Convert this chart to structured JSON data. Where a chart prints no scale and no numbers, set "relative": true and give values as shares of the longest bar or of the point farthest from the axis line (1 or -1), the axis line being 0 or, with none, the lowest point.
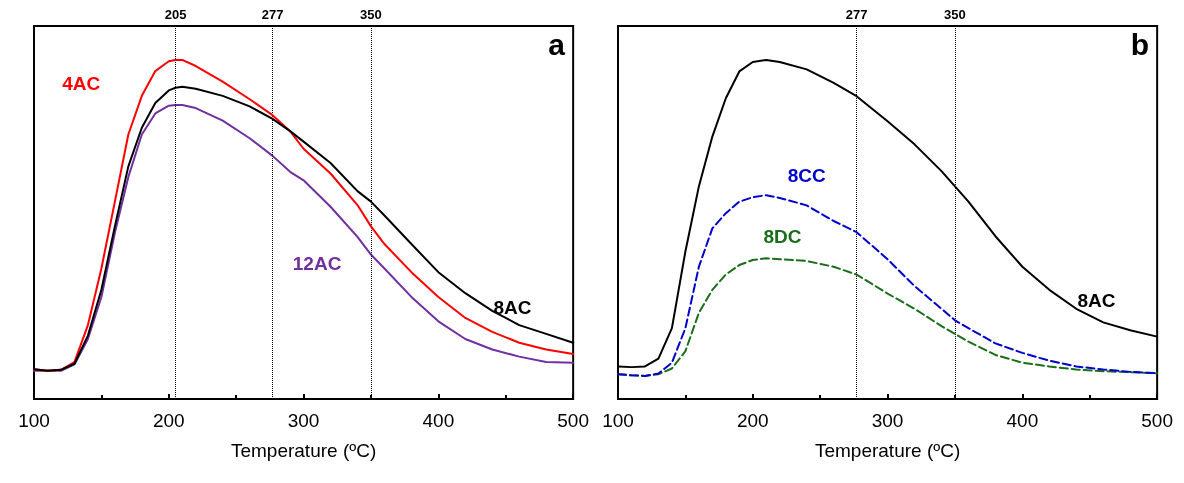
{
  "chart_data": [
    {
      "type": "line",
      "title": "a",
      "xlabel": "Temperature (ºC)",
      "relative": true,
      "xlim": [
        100,
        500
      ],
      "xticks": [
        100,
        200,
        300,
        400,
        500
      ],
      "grid": false,
      "legend": false,
      "marker": "none",
      "tick_labels": "x",
      "x": [
        100,
        110,
        120,
        130,
        140,
        150,
        160,
        170,
        180,
        190,
        200,
        205,
        210,
        220,
        240,
        260,
        277,
        290,
        300,
        320,
        340,
        350,
        360,
        380,
        400,
        420,
        440,
        460,
        480,
        500
      ],
      "ref_lines": [
        {
          "axis": "x",
          "value": 205,
          "label": "205",
          "line_style": "dotted",
          "color": "#000000"
        },
        {
          "axis": "x",
          "value": 277,
          "label": "277",
          "line_style": "dotted",
          "color": "#000000"
        },
        {
          "axis": "x",
          "value": 350,
          "label": "350",
          "line_style": "dotted",
          "color": "#000000"
        }
      ],
      "series": [
        {
          "name": "8AC",
          "color": "#000000",
          "line_style": "solid",
          "values": [
            0.088,
            0.083,
            0.086,
            0.104,
            0.187,
            0.322,
            0.509,
            0.686,
            0.8,
            0.873,
            0.91,
            0.918,
            0.921,
            0.915,
            0.894,
            0.863,
            0.826,
            0.79,
            0.759,
            0.696,
            0.613,
            0.582,
            0.541,
            0.457,
            0.374,
            0.312,
            0.26,
            0.218,
            0.192,
            0.166
          ]
        },
        {
          "name": "4AC",
          "color": "#ff0000",
          "line_style": "solid",
          "values": [
            0.088,
            0.083,
            0.086,
            0.109,
            0.218,
            0.385,
            0.582,
            0.78,
            0.894,
            0.967,
            0.996,
            1.0,
            1.0,
            0.982,
            0.936,
            0.884,
            0.837,
            0.79,
            0.738,
            0.665,
            0.572,
            0.509,
            0.457,
            0.374,
            0.301,
            0.239,
            0.198,
            0.166,
            0.146,
            0.133
          ]
        },
        {
          "name": "12AC",
          "color": "#7030a0",
          "line_style": "solid",
          "values": [
            0.083,
            0.083,
            0.083,
            0.102,
            0.177,
            0.301,
            0.49,
            0.655,
            0.78,
            0.842,
            0.865,
            0.867,
            0.867,
            0.858,
            0.821,
            0.769,
            0.717,
            0.67,
            0.645,
            0.567,
            0.478,
            0.426,
            0.385,
            0.301,
            0.229,
            0.177,
            0.146,
            0.125,
            0.109,
            0.107
          ]
        }
      ]
    },
    {
      "type": "line",
      "title": "b",
      "xlabel": "Temperature (ºC)",
      "relative": true,
      "xlim": [
        100,
        500
      ],
      "xticks": [
        100,
        200,
        300,
        400,
        500
      ],
      "grid": false,
      "legend": false,
      "marker": "none",
      "tick_labels": "x",
      "x": [
        100,
        110,
        120,
        130,
        140,
        150,
        160,
        170,
        180,
        190,
        200,
        210,
        220,
        240,
        260,
        277,
        300,
        320,
        340,
        350,
        360,
        380,
        400,
        420,
        440,
        460,
        480,
        500
      ],
      "ref_lines": [
        {
          "axis": "x",
          "value": 277,
          "label": "277",
          "line_style": "dotted",
          "color": "#000000"
        },
        {
          "axis": "x",
          "value": 350,
          "label": "350",
          "line_style": "dotted",
          "color": "#000000"
        }
      ],
      "series": [
        {
          "name": "8AC",
          "color": "#000000",
          "line_style": "solid",
          "values": [
            0.096,
            0.094,
            0.096,
            0.119,
            0.209,
            0.435,
            0.627,
            0.774,
            0.887,
            0.966,
            0.994,
            1.0,
            0.994,
            0.972,
            0.932,
            0.893,
            0.819,
            0.751,
            0.672,
            0.627,
            0.582,
            0.48,
            0.39,
            0.322,
            0.266,
            0.226,
            0.203,
            0.184
          ]
        },
        {
          "name": "8CC",
          "color": "#0000cc",
          "line_style": "dashed",
          "values": [
            0.073,
            0.07,
            0.068,
            0.075,
            0.107,
            0.209,
            0.39,
            0.503,
            0.548,
            0.582,
            0.595,
            0.601,
            0.593,
            0.571,
            0.525,
            0.492,
            0.412,
            0.333,
            0.266,
            0.232,
            0.209,
            0.164,
            0.136,
            0.113,
            0.096,
            0.087,
            0.08,
            0.076
          ]
        },
        {
          "name": "8DC",
          "color": "#1a6e1a",
          "line_style": "dashed",
          "values": [
            0.073,
            0.07,
            0.068,
            0.073,
            0.09,
            0.141,
            0.254,
            0.322,
            0.367,
            0.395,
            0.41,
            0.415,
            0.412,
            0.407,
            0.39,
            0.367,
            0.311,
            0.266,
            0.215,
            0.192,
            0.169,
            0.13,
            0.107,
            0.096,
            0.087,
            0.082,
            0.079,
            0.076
          ]
        }
      ]
    }
  ]
}
